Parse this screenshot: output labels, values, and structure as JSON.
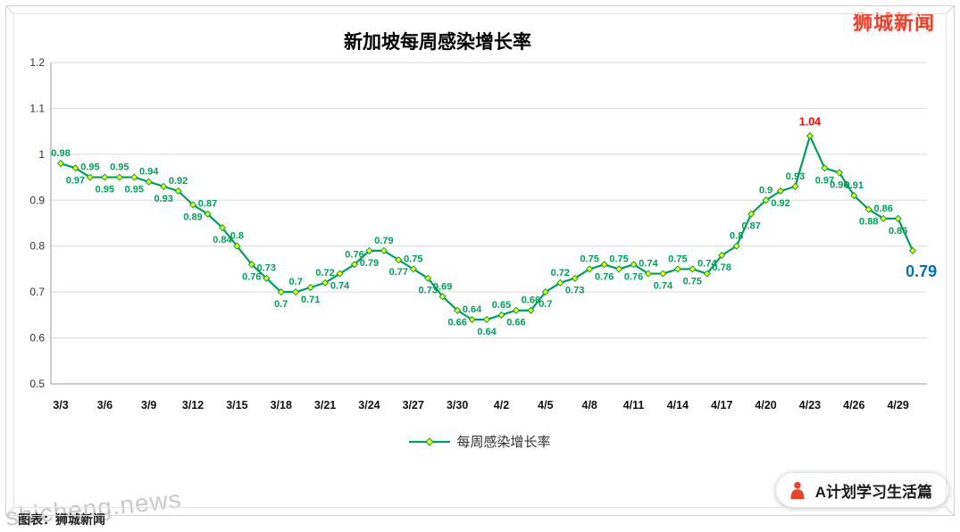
{
  "header": {
    "brand": "狮城新闻",
    "brand_color": "#E8432D"
  },
  "watermark": {
    "site": "shicheng.news",
    "credit": "图表：狮城新闻"
  },
  "badge": {
    "label": "A计划学习生活篇"
  },
  "chart_data": {
    "type": "line",
    "title": "新加坡每周感染增长率",
    "categories": [
      "3/3",
      "3/4",
      "3/5",
      "3/6",
      "3/7",
      "3/8",
      "3/9",
      "3/10",
      "3/11",
      "3/12",
      "3/13",
      "3/14",
      "3/15",
      "3/16",
      "3/17",
      "3/18",
      "3/19",
      "3/20",
      "3/21",
      "3/22",
      "3/23",
      "3/24",
      "3/25",
      "3/26",
      "3/27",
      "3/28",
      "3/29",
      "3/30",
      "3/31",
      "4/1",
      "4/2",
      "4/3",
      "4/4",
      "4/5",
      "4/6",
      "4/7",
      "4/8",
      "4/9",
      "4/10",
      "4/11",
      "4/12",
      "4/13",
      "4/14",
      "4/15",
      "4/16",
      "4/17",
      "4/18",
      "4/19",
      "4/20",
      "4/21",
      "4/22",
      "4/23",
      "4/24",
      "4/25",
      "4/26",
      "4/27",
      "4/28",
      "4/29",
      "4/30"
    ],
    "values": [
      0.98,
      0.97,
      0.95,
      0.95,
      0.95,
      0.95,
      0.94,
      0.93,
      0.92,
      0.89,
      0.87,
      0.84,
      0.8,
      0.76,
      0.73,
      0.7,
      0.7,
      0.71,
      0.72,
      0.74,
      0.76,
      0.79,
      0.79,
      0.77,
      0.75,
      0.73,
      0.69,
      0.66,
      0.64,
      0.64,
      0.65,
      0.66,
      0.66,
      0.7,
      0.72,
      0.73,
      0.75,
      0.76,
      0.75,
      0.76,
      0.74,
      0.74,
      0.75,
      0.75,
      0.74,
      0.78,
      0.8,
      0.87,
      0.9,
      0.92,
      0.93,
      1.04,
      0.97,
      0.96,
      0.91,
      0.88,
      0.86,
      0.86,
      0.79
    ],
    "x_tick_labels": [
      "3/3",
      "3/6",
      "3/9",
      "3/12",
      "3/15",
      "3/18",
      "3/21",
      "3/24",
      "3/27",
      "3/30",
      "4/2",
      "4/5",
      "4/8",
      "4/11",
      "4/14",
      "4/17",
      "4/20",
      "4/23",
      "4/26",
      "4/29"
    ],
    "y_ticks": [
      "0.5",
      "0.6",
      "0.7",
      "0.8",
      "0.9",
      "1",
      "1.1",
      "1.2"
    ],
    "ylim": [
      0.5,
      1.2
    ],
    "grid": true,
    "legend_position": "bottom",
    "legend": [
      {
        "name": "每周感染增长率"
      }
    ],
    "series_color": "#00A05A",
    "marker_fill": "#FFFF00",
    "label_color": "#00A05A",
    "peak_label": {
      "value": 1.04,
      "color": "#FF0000"
    },
    "last_label": {
      "value": 0.79,
      "color": "#0070C0"
    }
  }
}
